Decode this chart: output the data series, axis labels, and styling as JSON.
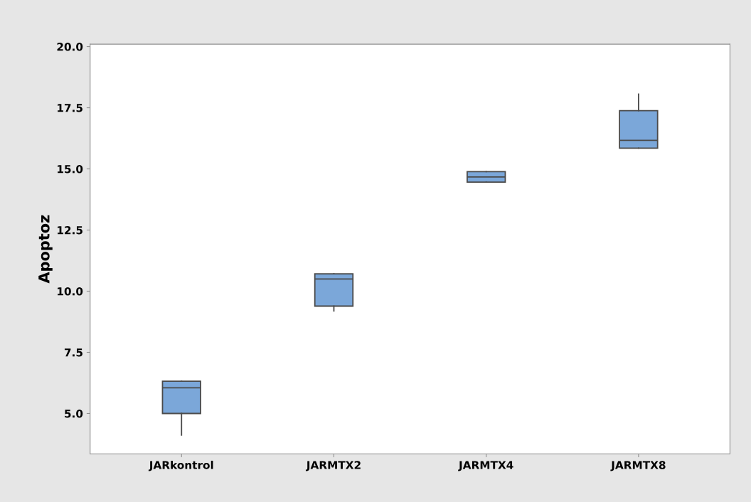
{
  "chart_data": {
    "type": "box",
    "ylabel": "Apoptoz",
    "categories": [
      "JARkontrol",
      "JARMTX2",
      "JARMTX4",
      "JARMTX8"
    ],
    "boxes": [
      {
        "low": 4.12,
        "q1": 5.0,
        "median": 6.05,
        "q3": 6.32,
        "high": 6.32
      },
      {
        "low": 9.19,
        "q1": 9.39,
        "median": 10.5,
        "q3": 10.71,
        "high": 10.71
      },
      {
        "low": 14.46,
        "q1": 14.46,
        "median": 14.67,
        "q3": 14.89,
        "high": 14.89
      },
      {
        "low": 15.85,
        "q1": 15.85,
        "median": 16.17,
        "q3": 17.38,
        "high": 18.06
      }
    ],
    "color": "#7ba7d9",
    "ylim": [
      3.35,
      20.1
    ],
    "yticks": [
      {
        "value": 5,
        "label": "5.0"
      },
      {
        "value": 7.5,
        "label": "7.5"
      },
      {
        "value": 10,
        "label": "10.0"
      },
      {
        "value": 12.5,
        "label": "12.5"
      },
      {
        "value": 15,
        "label": "15.0"
      },
      {
        "value": 17.5,
        "label": "17.5"
      },
      {
        "value": 20,
        "label": "20.0"
      }
    ],
    "grid": false
  }
}
